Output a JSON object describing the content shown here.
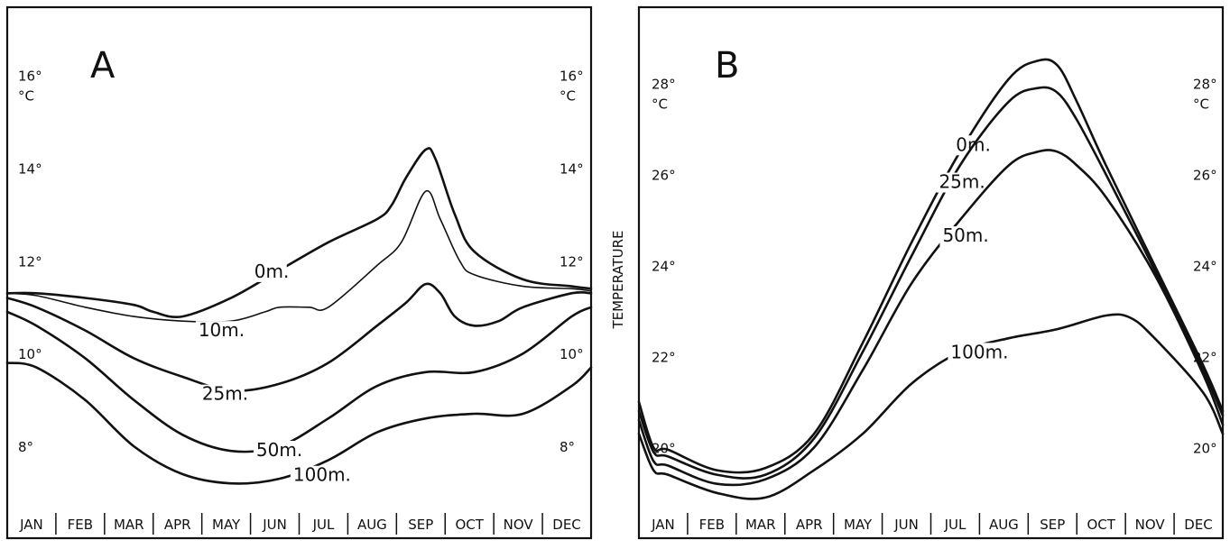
{
  "chart_data": [
    {
      "type": "line",
      "panel_label": "A",
      "xlabel": "",
      "ylabel": "",
      "unit": "°C",
      "categories": [
        "JAN",
        "FEB",
        "MAR",
        "APR",
        "MAY",
        "JUN",
        "JUL",
        "AUG",
        "SEP",
        "OCT",
        "NOV",
        "DEC"
      ],
      "ylim": [
        6.6,
        17.2
      ],
      "yticks": [
        {
          "value": 8,
          "label": "8°"
        },
        {
          "value": 10,
          "label": "10°"
        },
        {
          "value": 12,
          "label": "12°"
        },
        {
          "value": 14,
          "label": "14°"
        },
        {
          "value": 16,
          "label": "16°"
        }
      ],
      "grid": false,
      "series": [
        {
          "name": "0m.",
          "x": [
            0,
            0.6,
            1.6,
            2.6,
            3,
            3.6,
            4.6,
            5.6,
            6.6,
            7.6,
            7.9,
            8.2,
            8.6,
            8.8,
            9.2,
            9.6,
            10.6,
            11.6,
            12
          ],
          "y": [
            11.3,
            11.3,
            11.2,
            11.05,
            10.9,
            10.8,
            11.2,
            11.8,
            12.4,
            12.9,
            13.2,
            13.8,
            14.4,
            14.2,
            13.0,
            12.2,
            11.6,
            11.45,
            11.4
          ]
        },
        {
          "name": "10m.",
          "x": [
            0,
            0.6,
            1.6,
            2.6,
            3.6,
            4.6,
            5.3,
            5.6,
            6.2,
            6.6,
            7.6,
            8.1,
            8.6,
            8.9,
            9.3,
            9.6,
            10.6,
            11.6,
            12
          ],
          "y": [
            11.3,
            11.25,
            11.0,
            10.8,
            10.7,
            10.7,
            10.9,
            11.0,
            11.0,
            11.0,
            11.9,
            12.4,
            13.5,
            12.9,
            12.0,
            11.7,
            11.45,
            11.4,
            11.35
          ]
        },
        {
          "name": "25m.",
          "x": [
            0,
            0.6,
            1.6,
            2.6,
            3.6,
            4.6,
            5.6,
            6.6,
            7.6,
            8.2,
            8.6,
            8.9,
            9.2,
            9.6,
            10.1,
            10.6,
            11.6,
            12
          ],
          "y": [
            11.2,
            11.0,
            10.5,
            9.9,
            9.5,
            9.2,
            9.35,
            9.8,
            10.6,
            11.1,
            11.5,
            11.3,
            10.8,
            10.6,
            10.7,
            11.0,
            11.3,
            11.3
          ]
        },
        {
          "name": "50m.",
          "x": [
            0,
            0.6,
            1.6,
            2.6,
            3.6,
            4.6,
            5.6,
            6.6,
            7.6,
            8.6,
            9.6,
            10.6,
            11.6,
            12
          ],
          "y": [
            10.9,
            10.6,
            9.9,
            9.0,
            8.25,
            7.9,
            8.0,
            8.6,
            9.3,
            9.6,
            9.6,
            10.0,
            10.8,
            11.0
          ]
        },
        {
          "name": "100m.",
          "x": [
            0,
            0.6,
            1.6,
            2.6,
            3.6,
            4.6,
            5.6,
            6.6,
            7.6,
            8.6,
            9.6,
            10.6,
            11.6,
            12
          ],
          "y": [
            9.8,
            9.7,
            9.0,
            8.0,
            7.4,
            7.2,
            7.3,
            7.7,
            8.3,
            8.6,
            8.7,
            8.7,
            9.3,
            9.7
          ]
        }
      ],
      "label_positions_note": ""
    },
    {
      "type": "line",
      "panel_label": "B",
      "xlabel": "",
      "ylabel": "TEMPERATURE",
      "unit": "°C",
      "categories": [
        "JAN",
        "FEB",
        "MAR",
        "APR",
        "MAY",
        "JUN",
        "JUL",
        "AUG",
        "SEP",
        "OCT",
        "NOV",
        "DEC"
      ],
      "ylim": [
        18.6,
        29.4
      ],
      "yticks": [
        {
          "value": 20,
          "label": "20°"
        },
        {
          "value": 22,
          "label": "22°"
        },
        {
          "value": 24,
          "label": "24°"
        },
        {
          "value": 26,
          "label": "26°"
        },
        {
          "value": 28,
          "label": "28°"
        }
      ],
      "grid": false,
      "series": [
        {
          "name": "0m.",
          "x": [
            0,
            0.3,
            0.6,
            1.6,
            2.6,
            3.6,
            4.6,
            5.6,
            6.6,
            7.6,
            8.2,
            8.6,
            9.0,
            9.6,
            10.6,
            11.6,
            12
          ],
          "y": [
            21.0,
            20.0,
            19.95,
            19.5,
            19.55,
            20.3,
            22.3,
            24.5,
            26.5,
            28.1,
            28.5,
            28.4,
            27.6,
            26.2,
            24.0,
            21.8,
            20.8
          ]
        },
        {
          "name": "25m.",
          "x": [
            0,
            0.3,
            0.6,
            1.6,
            2.6,
            3.6,
            4.6,
            5.6,
            6.6,
            7.6,
            8.2,
            8.6,
            9.0,
            9.6,
            10.6,
            11.6,
            12
          ],
          "y": [
            20.8,
            19.9,
            19.8,
            19.4,
            19.4,
            20.2,
            22.1,
            24.2,
            26.2,
            27.6,
            27.9,
            27.8,
            27.2,
            26.0,
            23.9,
            21.7,
            20.7
          ]
        },
        {
          "name": "50m.",
          "x": [
            0,
            0.3,
            0.6,
            1.6,
            2.6,
            3.6,
            4.6,
            5.6,
            6.6,
            7.6,
            8.2,
            8.6,
            9.0,
            9.6,
            10.6,
            11.6,
            12
          ],
          "y": [
            20.6,
            19.7,
            19.6,
            19.2,
            19.3,
            20.0,
            21.7,
            23.6,
            25.0,
            26.2,
            26.5,
            26.5,
            26.2,
            25.5,
            23.8,
            21.6,
            20.5
          ]
        },
        {
          "name": "100m.",
          "x": [
            0,
            0.3,
            0.6,
            1.6,
            2.6,
            3.6,
            4.6,
            5.6,
            6.6,
            7.6,
            8.6,
            9.6,
            10.1,
            10.6,
            11.6,
            12
          ],
          "y": [
            20.3,
            19.5,
            19.4,
            19.0,
            18.9,
            19.5,
            20.3,
            21.4,
            22.1,
            22.4,
            22.6,
            22.9,
            22.85,
            22.4,
            21.2,
            20.3
          ]
        }
      ]
    }
  ]
}
